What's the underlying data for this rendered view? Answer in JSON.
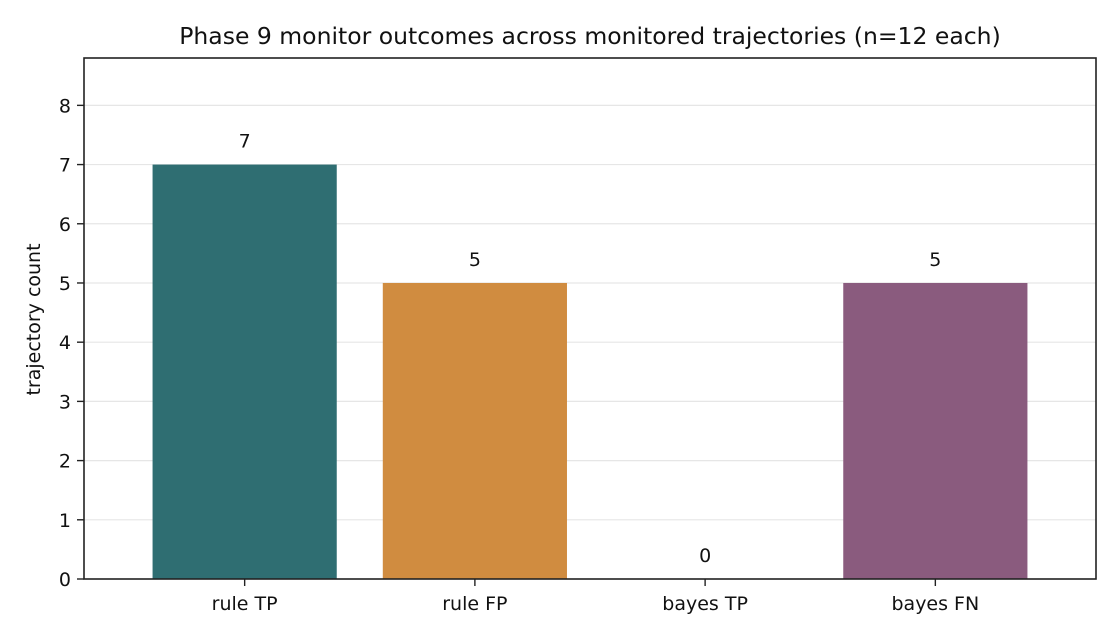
{
  "chart_data": {
    "type": "bar",
    "title": "Phase 9 monitor outcomes across monitored trajectories (n=12 each)",
    "xlabel": "",
    "ylabel": "trajectory count",
    "categories": [
      "rule TP",
      "rule FP",
      "bayes TP",
      "bayes FN"
    ],
    "values": [
      7,
      5,
      0,
      5
    ],
    "value_labels": [
      "7",
      "5",
      "0",
      "5"
    ],
    "colors": [
      "#2f6e72",
      "#d08c40",
      "#d08c40",
      "#8a5b7e"
    ],
    "ylim": [
      0,
      8.8
    ],
    "yticks": [
      0,
      1,
      2,
      3,
      4,
      5,
      6,
      7,
      8
    ],
    "ytick_labels": [
      "0",
      "1",
      "2",
      "3",
      "4",
      "5",
      "6",
      "7",
      "8"
    ],
    "grid": "horizontal",
    "legend": "none"
  }
}
